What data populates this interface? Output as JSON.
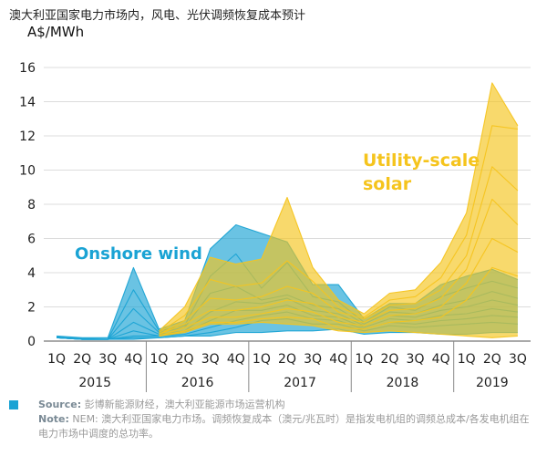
{
  "header": {
    "title": "澳大利亚国家电力市场内，风电、光伏调频恢复成本预计",
    "unit": "A$/MWh"
  },
  "footer": {
    "source_label": "Source:",
    "source_text": "彭博新能源财经，澳大利亚能源市场运营机构",
    "note_label": "Note:",
    "note_text": "NEM: 澳大利亚国家电力市场。调频恢复成本（澳元/兆瓦时）是指发电机组的调频总成本/各发电机组在电力市场中调度的总功率。"
  },
  "chart_data": {
    "type": "area",
    "title": "澳大利亚国家电力市场内，风电、光伏调频恢复成本预计",
    "ylabel": "A$/MWh",
    "xlabel": "",
    "ylim": [
      0,
      16
    ],
    "yticks": [
      0,
      2,
      4,
      6,
      8,
      10,
      12,
      14,
      16
    ],
    "grid": true,
    "categories": [
      "1Q",
      "2Q",
      "3Q",
      "4Q",
      "1Q",
      "2Q",
      "3Q",
      "4Q",
      "1Q",
      "2Q",
      "3Q",
      "4Q",
      "1Q",
      "2Q",
      "3Q",
      "4Q",
      "1Q",
      "2Q",
      "3Q"
    ],
    "years": [
      {
        "label": "2015",
        "start": 0,
        "end": 3
      },
      {
        "label": "2016",
        "start": 4,
        "end": 7
      },
      {
        "label": "2017",
        "start": 8,
        "end": 11
      },
      {
        "label": "2018",
        "start": 12,
        "end": 15
      },
      {
        "label": "2019",
        "start": 16,
        "end": 18
      }
    ],
    "series": [
      {
        "name": "Onshore wind",
        "color": "#1aa3d4",
        "x_start": 0,
        "x_end": 18,
        "upper": [
          0.3,
          0.2,
          0.2,
          4.3,
          0.7,
          1.2,
          5.4,
          6.8,
          6.3,
          5.8,
          3.3,
          3.3,
          1.3,
          2.2,
          2.2,
          3.3,
          3.8,
          4.2,
          3.6
        ],
        "lower": [
          0.2,
          0.1,
          0.1,
          0.1,
          0.2,
          0.3,
          0.3,
          0.5,
          0.5,
          0.6,
          0.6,
          0.7,
          0.4,
          0.5,
          0.5,
          0.4,
          0.4,
          0.5,
          0.5
        ],
        "lines": [
          [
            0.3,
            0.2,
            0.2,
            4.3,
            0.7,
            1.2,
            5.4,
            6.8,
            6.3,
            5.8,
            3.3,
            3.3,
            1.3,
            2.2,
            2.2,
            3.3,
            3.8,
            4.2,
            3.6
          ],
          [
            0.2,
            0.15,
            0.1,
            3.0,
            0.6,
            0.9,
            3.8,
            5.1,
            3.1,
            4.6,
            2.6,
            2.3,
            1.1,
            2.0,
            1.8,
            2.6,
            3.1,
            3.5,
            3.1
          ],
          [
            0.25,
            0.1,
            0.1,
            1.9,
            0.5,
            0.8,
            2.8,
            3.2,
            2.4,
            2.7,
            2.1,
            1.9,
            1.0,
            1.7,
            1.6,
            2.1,
            2.4,
            2.9,
            2.5
          ],
          [
            0.2,
            0.1,
            0.1,
            1.1,
            0.4,
            0.6,
            1.7,
            2.3,
            2.2,
            2.5,
            1.8,
            1.6,
            0.9,
            1.5,
            1.4,
            1.8,
            2.0,
            2.4,
            2.1
          ],
          [
            0.2,
            0.1,
            0.1,
            0.6,
            0.3,
            0.5,
            1.2,
            1.8,
            1.8,
            2.1,
            1.5,
            1.4,
            0.8,
            1.3,
            1.2,
            1.5,
            1.6,
            1.9,
            1.7
          ],
          [
            0.2,
            0.1,
            0.1,
            0.3,
            0.3,
            0.4,
            0.8,
            1.2,
            1.5,
            1.7,
            1.3,
            1.2,
            0.7,
            1.1,
            1.0,
            1.2,
            1.3,
            1.5,
            1.4
          ],
          [
            0.2,
            0.1,
            0.1,
            0.2,
            0.2,
            0.3,
            0.5,
            0.8,
            1.2,
            1.3,
            1.0,
            1.0,
            0.6,
            0.9,
            0.8,
            0.9,
            1.0,
            1.1,
            1.0
          ],
          [
            0.2,
            0.1,
            0.1,
            0.1,
            0.2,
            0.3,
            0.3,
            0.5,
            0.5,
            0.6,
            0.6,
            0.7,
            0.4,
            0.5,
            0.5,
            0.4,
            0.4,
            0.5,
            0.5
          ]
        ]
      },
      {
        "name": "Utility-scale solar",
        "color": "#f5c41d",
        "x_start": 4,
        "x_end": 18,
        "upper": [
          0.6,
          2.0,
          4.9,
          4.5,
          4.8,
          8.4,
          4.3,
          2.4,
          1.6,
          2.8,
          3.0,
          4.6,
          7.5,
          15.1,
          12.6
        ],
        "lower": [
          0.3,
          0.5,
          1.0,
          1.0,
          1.1,
          1.0,
          0.9,
          0.6,
          0.5,
          0.6,
          0.5,
          0.4,
          0.3,
          0.2,
          0.3
        ],
        "lines": [
          [
            0.6,
            2.0,
            4.9,
            4.5,
            4.8,
            8.4,
            4.3,
            2.4,
            1.6,
            2.8,
            3.0,
            4.6,
            7.5,
            15.1,
            12.6
          ],
          [
            0.5,
            1.5,
            3.6,
            3.2,
            3.4,
            4.7,
            3.5,
            2.0,
            1.4,
            2.4,
            2.6,
            3.7,
            6.2,
            12.6,
            12.4
          ],
          [
            0.4,
            1.2,
            2.5,
            2.4,
            2.6,
            3.2,
            2.8,
            1.7,
            1.3,
            2.1,
            2.2,
            3.0,
            5.0,
            10.2,
            8.8
          ],
          [
            0.4,
            1.0,
            1.8,
            1.8,
            2.0,
            2.4,
            2.2,
            1.4,
            1.1,
            1.8,
            1.9,
            2.5,
            4.2,
            8.3,
            6.8
          ],
          [
            0.3,
            0.8,
            1.4,
            1.4,
            1.6,
            1.9,
            1.7,
            1.1,
            0.9,
            1.5,
            1.6,
            2.0,
            3.4,
            6.0,
            5.2
          ],
          [
            0.3,
            0.6,
            1.1,
            1.1,
            1.3,
            1.4,
            1.3,
            0.8,
            0.7,
            1.1,
            1.2,
            1.4,
            2.4,
            4.3,
            3.8
          ],
          [
            0.3,
            0.5,
            1.0,
            1.0,
            1.1,
            1.0,
            0.9,
            0.6,
            0.5,
            0.6,
            0.5,
            0.4,
            0.3,
            0.2,
            0.3
          ]
        ]
      }
    ],
    "annotations": [
      {
        "series": "Onshore wind",
        "text": "Onshore wind",
        "color": "#1aa3d4"
      },
      {
        "series": "Utility-scale solar",
        "text": "Utility-scale solar",
        "color": "#f5c41d"
      }
    ]
  }
}
